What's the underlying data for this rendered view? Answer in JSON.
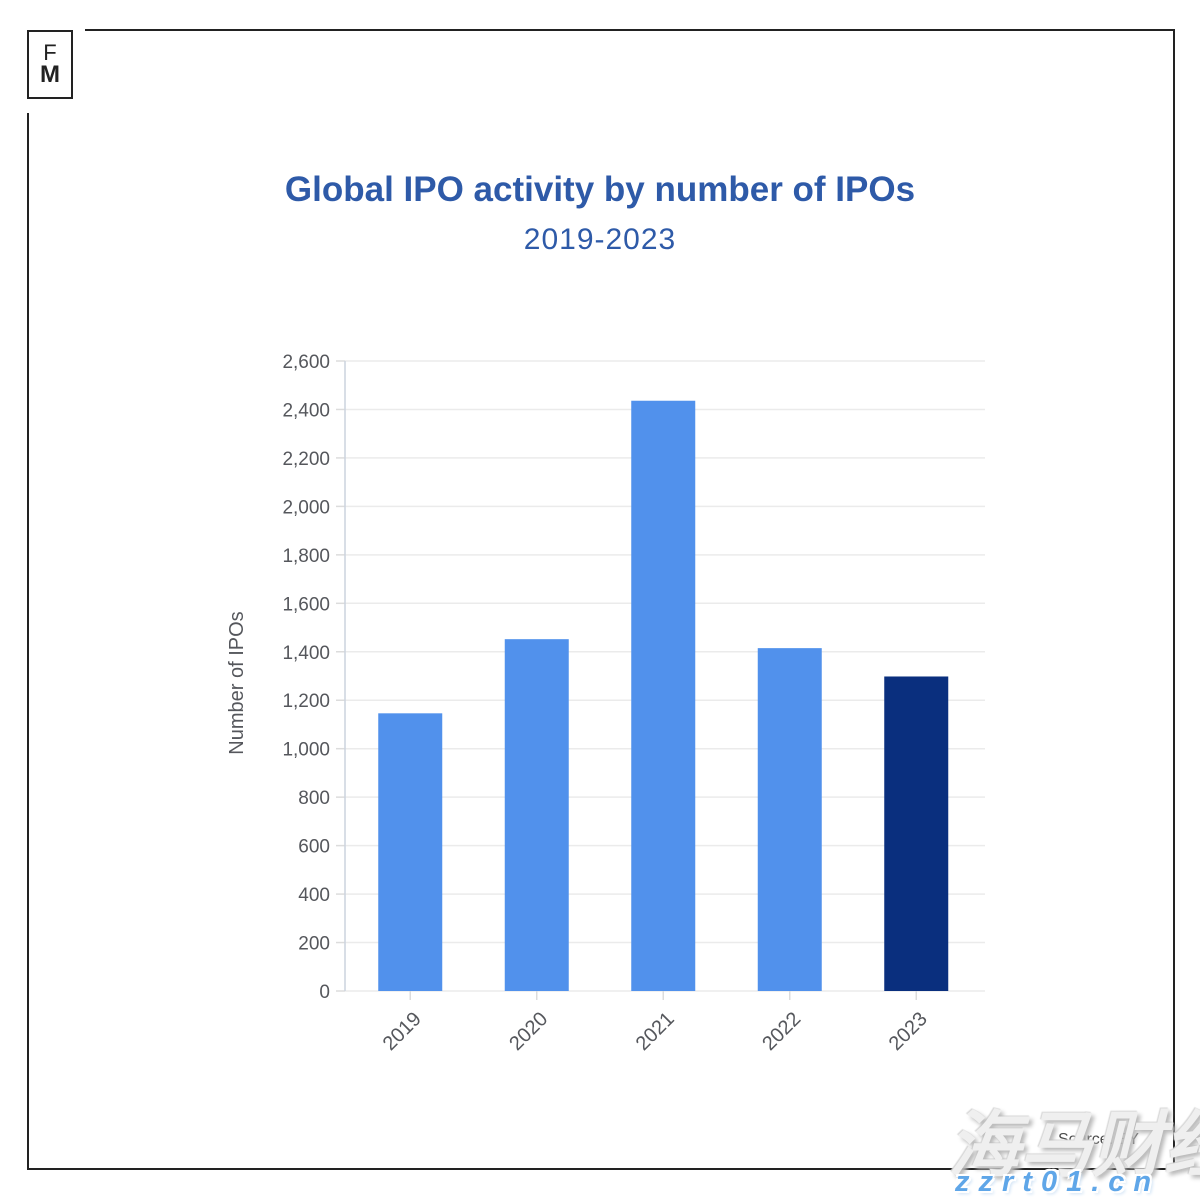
{
  "logo": {
    "line1": "F",
    "line2": "M"
  },
  "header": {
    "title": "Global IPO activity by number of IPOs",
    "subtitle": "2019-2023"
  },
  "chart_data": {
    "type": "bar",
    "title": "Global IPO activity by number of IPOs",
    "subtitle": "2019-2023",
    "categories": [
      "2019",
      "2020",
      "2021",
      "2022",
      "2023"
    ],
    "values": [
      1146,
      1452,
      2436,
      1415,
      1298
    ],
    "xlabel": "",
    "ylabel": "Number of IPOs",
    "ylim": [
      0,
      2600
    ],
    "ytick_step": 200,
    "ytick_labels": [
      "0",
      "200",
      "400",
      "600",
      "800",
      "1,000",
      "1,200",
      "1,400",
      "1,600",
      "1,800",
      "2,000",
      "2,200",
      "2,400",
      "2,600"
    ],
    "grid": true,
    "legend": "none",
    "bar_color": "#5191ec",
    "highlight_color": "#0a2f7e",
    "highlight_index": 4,
    "tick_text_color": "#55575c",
    "grid_color": "#ebebeb",
    "axis_line_color": "#ccd3de"
  },
  "footer": {
    "source": "Source: EY"
  },
  "watermark": {
    "cjk": "海马财经",
    "url": "zzrt01.cn"
  }
}
